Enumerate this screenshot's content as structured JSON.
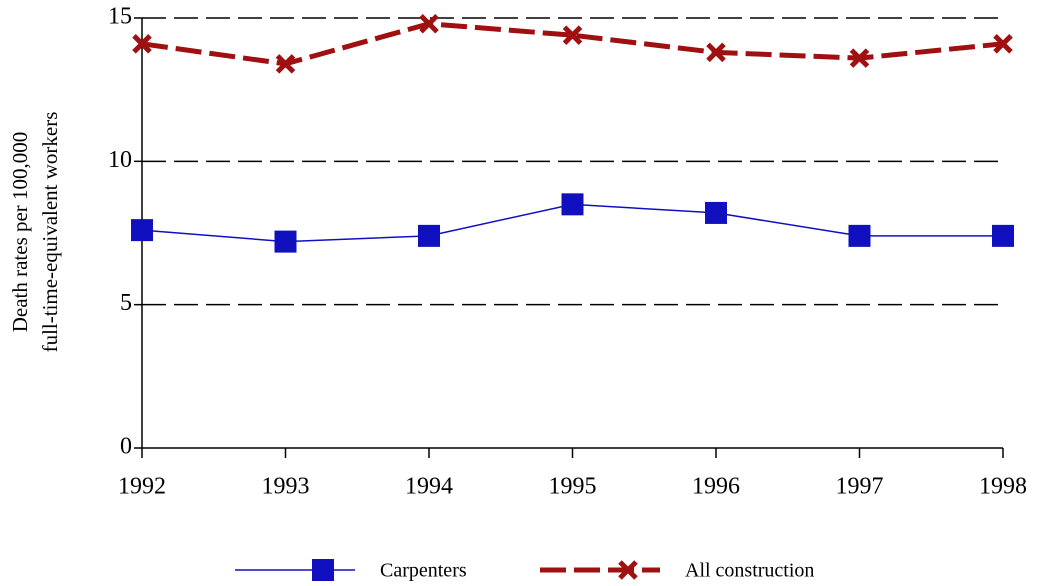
{
  "chart_data": {
    "type": "line",
    "ylabel": [
      "Death rates per 100,000",
      "full-time-equivalent workers"
    ],
    "x": [
      1992,
      1993,
      1994,
      1995,
      1996,
      1997,
      1998
    ],
    "xlim": [
      1992,
      1998
    ],
    "xticks": [
      1992,
      1993,
      1994,
      1995,
      1996,
      1997,
      1998
    ],
    "ylim": [
      0,
      15
    ],
    "yticks": [
      0,
      5,
      10,
      15
    ],
    "grid": true,
    "series": [
      {
        "name": "Carpenters",
        "color": "#1010c0",
        "line_style": "solid",
        "marker": "square",
        "values": [
          7.6,
          7.2,
          7.4,
          8.5,
          8.2,
          7.4,
          7.4
        ]
      },
      {
        "name": "All construction",
        "color": "#a01010",
        "line_style": "dashed",
        "marker": "x",
        "values": [
          14.1,
          13.4,
          14.8,
          14.4,
          13.8,
          13.6,
          14.1
        ]
      }
    ]
  }
}
